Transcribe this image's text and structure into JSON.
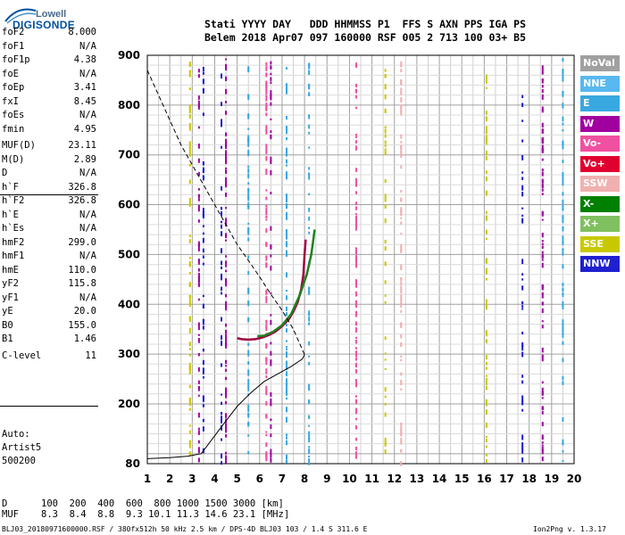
{
  "logo": {
    "top": "Lowell",
    "bottom": "DIGISONDE"
  },
  "header": {
    "line1": "Stati YYYY DAY   DDD HHMMSS P1  FFS S AXN PPS IGA PS",
    "line2": "Belem 2018 Apr07 097 160000 RSF 005 2 713 100 03+ B5"
  },
  "params": [
    {
      "label": "foF2",
      "value": "8.000"
    },
    {
      "label": "foF1",
      "value": "N/A"
    },
    {
      "label": "foF1p",
      "value": "4.38"
    },
    {
      "label": "foE",
      "value": "N/A"
    },
    {
      "label": "foEp",
      "value": "3.41"
    },
    {
      "label": "fxI",
      "value": "8.45"
    },
    {
      "label": "foEs",
      "value": "N/A"
    },
    {
      "label": "fmin",
      "value": "4.95"
    },
    {
      "label": "MUF(D)",
      "value": "23.11"
    },
    {
      "label": "M(D)",
      "value": "2.89"
    },
    {
      "label": "D",
      "value": "N/A"
    },
    {
      "label": "h`F",
      "value": "326.8"
    },
    {
      "label": "h`F2",
      "value": "326.8"
    },
    {
      "label": "h`E",
      "value": "N/A"
    },
    {
      "label": "h`Es",
      "value": "N/A"
    },
    {
      "label": "hmF2",
      "value": "299.0"
    },
    {
      "label": "hmF1",
      "value": "N/A"
    },
    {
      "label": "hmE",
      "value": "110.0"
    },
    {
      "label": "yF2",
      "value": "115.8"
    },
    {
      "label": "yF1",
      "value": "N/A"
    },
    {
      "label": "yE",
      "value": "20.0"
    },
    {
      "label": "B0",
      "value": "155.0"
    },
    {
      "label": "B1",
      "value": "1.46"
    },
    {
      "label": "C-level",
      "value": "11"
    }
  ],
  "auto": [
    "Auto:",
    "Artist5",
    "500200"
  ],
  "legend": [
    {
      "label": "NoVal",
      "color": "#a0a0a0"
    },
    {
      "label": "NNE",
      "color": "#58b8f0"
    },
    {
      "label": "E",
      "color": "#38a8e0"
    },
    {
      "label": "W",
      "color": "#a000a0"
    },
    {
      "label": "Vo-",
      "color": "#f050a0"
    },
    {
      "label": "Vo+",
      "color": "#e00030"
    },
    {
      "label": "SSW",
      "color": "#f0b0b0"
    },
    {
      "label": "X-",
      "color": "#008000"
    },
    {
      "label": "X+",
      "color": "#80c060"
    },
    {
      "label": "SSE",
      "color": "#c8c800"
    },
    {
      "label": "NNW",
      "color": "#2020d0"
    }
  ],
  "muf_table": {
    "d_label": "D",
    "d_values": "100  200  400  600  800 1000 1500 3000 [km]",
    "muf_label": "MUF",
    "muf_values": "8.3  8.4  8.8  9.3 10.1 11.3 14.6 23.1 [MHz]"
  },
  "footer": {
    "left": "BLJ03_20180971600000.RSF / 380fx512h 50 kHz 2.5 km / DPS-4D BLJ03 103 / 1.4 S 311.6 E",
    "right": "Ion2Png v. 1.3.17"
  },
  "chart_data": {
    "type": "scatter",
    "xlim": [
      1,
      20
    ],
    "ylim": [
      80,
      900
    ],
    "x_ticks": [
      "1",
      "2",
      "3",
      "4",
      "5",
      "6",
      "7",
      "8",
      "9",
      "10",
      "11",
      "12",
      "13",
      "14",
      "15",
      "16",
      "17",
      "18",
      "19",
      "20"
    ],
    "y_ticks": [
      "80",
      "200",
      "300",
      "400",
      "500",
      "600",
      "700",
      "800",
      "900"
    ],
    "grid": true,
    "series": [
      {
        "name": "o-trace",
        "color": "#a00040",
        "points": [
          [
            5.0,
            332
          ],
          [
            5.2,
            330
          ],
          [
            5.5,
            329
          ],
          [
            5.8,
            330
          ],
          [
            6.1,
            333
          ],
          [
            6.4,
            338
          ],
          [
            6.7,
            345
          ],
          [
            7.0,
            356
          ],
          [
            7.3,
            370
          ],
          [
            7.5,
            385
          ],
          [
            7.7,
            405
          ],
          [
            7.85,
            430
          ],
          [
            7.95,
            460
          ],
          [
            8.0,
            500
          ],
          [
            8.05,
            530
          ]
        ]
      },
      {
        "name": "x-trace",
        "color": "#208020",
        "points": [
          [
            5.9,
            336
          ],
          [
            6.2,
            337
          ],
          [
            6.6,
            345
          ],
          [
            7.0,
            358
          ],
          [
            7.4,
            380
          ],
          [
            7.8,
            420
          ],
          [
            8.1,
            460
          ],
          [
            8.3,
            500
          ],
          [
            8.45,
            550
          ]
        ]
      },
      {
        "name": "profile-solid",
        "color": "#000000",
        "points": [
          [
            1.0,
            90
          ],
          [
            2.0,
            92
          ],
          [
            2.8,
            95
          ],
          [
            3.4,
            100
          ],
          [
            3.9,
            130
          ],
          [
            4.4,
            160
          ],
          [
            5.0,
            195
          ],
          [
            5.6,
            222
          ],
          [
            6.2,
            245
          ],
          [
            6.8,
            260
          ],
          [
            7.4,
            275
          ],
          [
            7.9,
            290
          ],
          [
            8.0,
            299
          ]
        ]
      },
      {
        "name": "profile-dashed",
        "color": "#000000",
        "points": [
          [
            1.0,
            870
          ],
          [
            1.5,
            820
          ],
          [
            2.0,
            770
          ],
          [
            2.5,
            720
          ],
          [
            3.0,
            680
          ],
          [
            3.5,
            640
          ],
          [
            4.0,
            600
          ],
          [
            4.5,
            560
          ],
          [
            5.0,
            520
          ],
          [
            5.5,
            488
          ],
          [
            6.0,
            455
          ],
          [
            6.5,
            420
          ],
          [
            7.0,
            388
          ],
          [
            7.5,
            350
          ],
          [
            8.0,
            299
          ]
        ]
      }
    ],
    "vertical_echo_columns": [
      {
        "x": 2.9,
        "color": "#c8c800"
      },
      {
        "x": 3.3,
        "color": "#a000a0"
      },
      {
        "x": 3.5,
        "color": "#2020d0"
      },
      {
        "x": 4.3,
        "color": "#2020d0"
      },
      {
        "x": 4.5,
        "color": "#a000a0"
      },
      {
        "x": 5.5,
        "color": "#38a8e0"
      },
      {
        "x": 6.3,
        "color": "#f050a0"
      },
      {
        "x": 6.5,
        "color": "#a000a0"
      },
      {
        "x": 7.2,
        "color": "#38a8e0"
      },
      {
        "x": 8.2,
        "color": "#38a8e0"
      },
      {
        "x": 10.3,
        "color": "#f050a0"
      },
      {
        "x": 11.6,
        "color": "#c8c800"
      },
      {
        "x": 12.3,
        "color": "#f0b0b0"
      },
      {
        "x": 16.1,
        "color": "#c8c800"
      },
      {
        "x": 17.7,
        "color": "#2020d0"
      },
      {
        "x": 18.6,
        "color": "#a000a0"
      },
      {
        "x": 19.5,
        "color": "#38a8e0"
      }
    ]
  }
}
